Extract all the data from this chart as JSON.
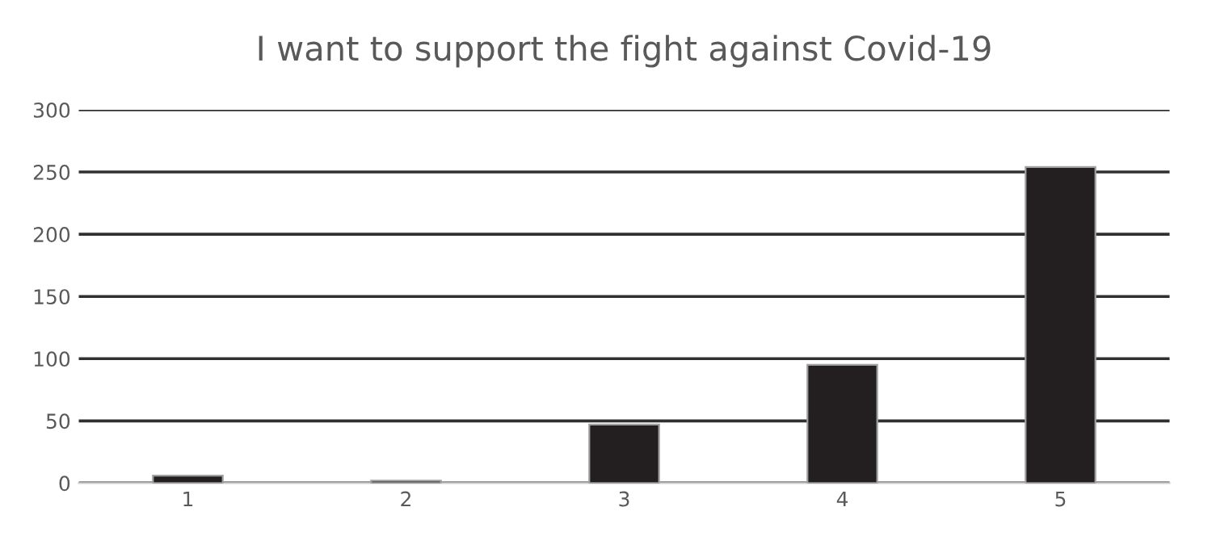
{
  "chart_data": {
    "type": "bar",
    "title": "I want to support the fight against Covid-19",
    "categories": [
      "1",
      "2",
      "3",
      "4",
      "5"
    ],
    "values": [
      6,
      2,
      47,
      95,
      254
    ],
    "color": "#231f20",
    "ylim": [
      0,
      300
    ],
    "yticks": [
      0,
      50,
      100,
      150,
      200,
      250,
      300
    ],
    "grid": "y"
  }
}
